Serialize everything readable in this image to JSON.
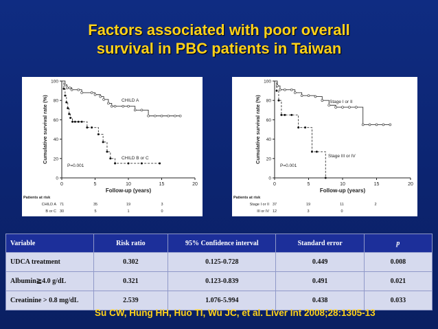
{
  "title_line1": "Factors associated with poor overall",
  "title_line2": "survival in PBC patients in Taiwan",
  "colors": {
    "title": "#ffd21a",
    "background": "#0c2470",
    "table_header": "#1c2f9a",
    "table_cell": "#d6daee"
  },
  "chart_data": [
    {
      "type": "line",
      "chart_kind": "kaplan-meier",
      "ylabel": "Cumulative survival rate (%)",
      "xlabel": "Follow-up (years)",
      "xlim": [
        0,
        20
      ],
      "ylim": [
        0,
        100
      ],
      "xticks": [
        "0",
        "5",
        "10",
        "15",
        "20"
      ],
      "yticks": [
        "0",
        "20",
        "40",
        "60",
        "80",
        "100"
      ],
      "pvalue": "P=0.001",
      "series": [
        {
          "name": "CHILD A",
          "style": "solid",
          "x": [
            0,
            0.5,
            0.8,
            1.2,
            1.5,
            2.5,
            3,
            4.5,
            5,
            5.8,
            6.3,
            7,
            7.5,
            8,
            9.2,
            10,
            11,
            12,
            13,
            14,
            15,
            16,
            17,
            17.8
          ],
          "y": [
            100,
            96,
            93,
            93,
            91,
            91,
            88,
            88,
            86,
            84,
            81,
            77,
            74,
            74,
            74,
            74,
            70,
            70,
            64,
            64,
            64,
            64,
            64,
            64
          ]
        },
        {
          "name": "CHILD B or C",
          "style": "dashed",
          "x": [
            0,
            0.3,
            0.5,
            0.7,
            0.9,
            1.1,
            1.3,
            1.6,
            2,
            2.5,
            3,
            3.8,
            4.5,
            5.5,
            6.2,
            6.8,
            7.3,
            8,
            10,
            12,
            14.7
          ],
          "y": [
            100,
            92,
            85,
            78,
            72,
            66,
            62,
            58,
            58,
            58,
            58,
            52,
            52,
            45,
            37,
            27,
            20,
            15,
            15,
            15,
            15
          ]
        }
      ],
      "patients_at_risk": {
        "header": "Patients at risk",
        "rows": [
          {
            "label": "CHILD A",
            "values": [
              "71",
              "35",
              "19",
              "3"
            ]
          },
          {
            "label": "B or C",
            "values": [
              "30",
              "5",
              "1",
              "0"
            ]
          }
        ]
      }
    },
    {
      "type": "line",
      "chart_kind": "kaplan-meier",
      "ylabel": "Cumulative survival rate (%)",
      "xlabel": "Follow-up (years)",
      "xlim": [
        0,
        20
      ],
      "ylim": [
        0,
        100
      ],
      "xticks": [
        "0",
        "5",
        "10",
        "15",
        "20"
      ],
      "yticks": [
        "0",
        "20",
        "40",
        "60",
        "80",
        "100"
      ],
      "pvalue": "P=0.001",
      "series": [
        {
          "name": "Stage I or II",
          "style": "solid",
          "x": [
            0,
            0.4,
            0.8,
            1.5,
            2.5,
            3,
            4,
            5,
            6,
            7,
            8,
            9,
            10,
            11,
            12,
            13,
            14,
            15,
            16,
            17
          ],
          "y": [
            100,
            95,
            91,
            91,
            91,
            88,
            85,
            85,
            84,
            80,
            75,
            73,
            73,
            73,
            73,
            55,
            55,
            55,
            55,
            55
          ]
        },
        {
          "name": "Stage III or IV",
          "style": "dashed",
          "x": [
            0,
            0.3,
            0.6,
            1,
            1.5,
            2.5,
            3.5,
            4.5,
            5.5,
            6.2,
            7.5
          ],
          "y": [
            100,
            90,
            80,
            65,
            65,
            65,
            52,
            52,
            27,
            27,
            0
          ]
        }
      ],
      "patients_at_risk": {
        "header": "Patients at risk",
        "rows": [
          {
            "label": "Stage I or II",
            "values": [
              "37",
              "19",
              "11",
              "2"
            ]
          },
          {
            "label": "III or IV",
            "values": [
              "12",
              "3",
              "0",
              ""
            ]
          }
        ]
      }
    }
  ],
  "table": {
    "headers": [
      "Variable",
      "Risk ratio",
      "95% Confidence interval",
      "Standard error",
      "p"
    ],
    "rows": [
      [
        "UDCA treatment",
        "0.302",
        "0.125-0.728",
        "0.449",
        "0.008"
      ],
      [
        "Albumin≧4.0 g/dL",
        "0.321",
        "0.123-0.839",
        "0.491",
        "0.021"
      ],
      [
        "Creatinine > 0.8 mg/dL",
        "2.539",
        "1.076-5.994",
        "0.438",
        "0.033"
      ]
    ]
  },
  "citation": "Su CW, Hung HH, Huo TI, Wu JC, et al. Liver Int 2008;28:1305-13"
}
